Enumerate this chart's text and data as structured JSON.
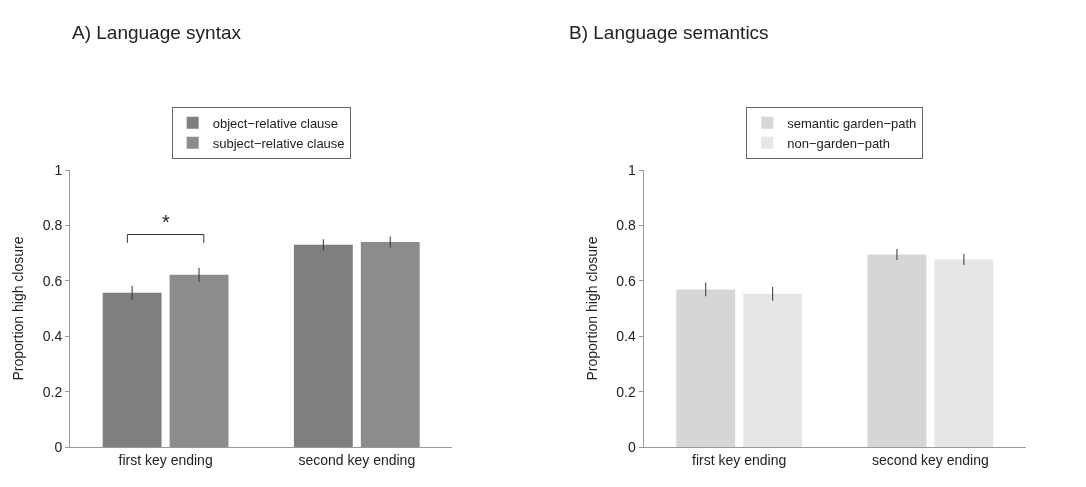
{
  "chart_data": [
    {
      "type": "bar",
      "title": "A) Language syntax",
      "ylabel": "Proportion high closure",
      "categories": [
        "first key ending",
        "second key ending"
      ],
      "series": [
        {
          "name": "object−relative clause",
          "color": "#7f7f7f",
          "values": [
            0.557,
            0.73
          ],
          "errors": [
            0.025,
            0.02
          ]
        },
        {
          "name": "subject−relative clause",
          "color": "#8c8c8c",
          "values": [
            0.622,
            0.74
          ],
          "errors": [
            0.025,
            0.02
          ]
        }
      ],
      "ylim": [
        0,
        1
      ],
      "yticks": [
        0,
        0.2,
        0.4,
        0.6,
        0.8,
        1
      ],
      "legend": "top",
      "annotations": [
        "*"
      ]
    },
    {
      "type": "bar",
      "title": "B) Language semantics",
      "ylabel": "Proportion high closure",
      "categories": [
        "first key ending",
        "second key ending"
      ],
      "series": [
        {
          "name": "semantic garden−path",
          "color": "#d6d6d6",
          "values": [
            0.569,
            0.695
          ],
          "errors": [
            0.025,
            0.02
          ]
        },
        {
          "name": "non−garden−path",
          "color": "#e6e6e6",
          "values": [
            0.553,
            0.677
          ],
          "errors": [
            0.025,
            0.02
          ]
        }
      ],
      "ylim": [
        0,
        1
      ],
      "yticks": [
        0,
        0.2,
        0.4,
        0.6,
        0.8,
        1
      ],
      "legend": "top"
    }
  ]
}
